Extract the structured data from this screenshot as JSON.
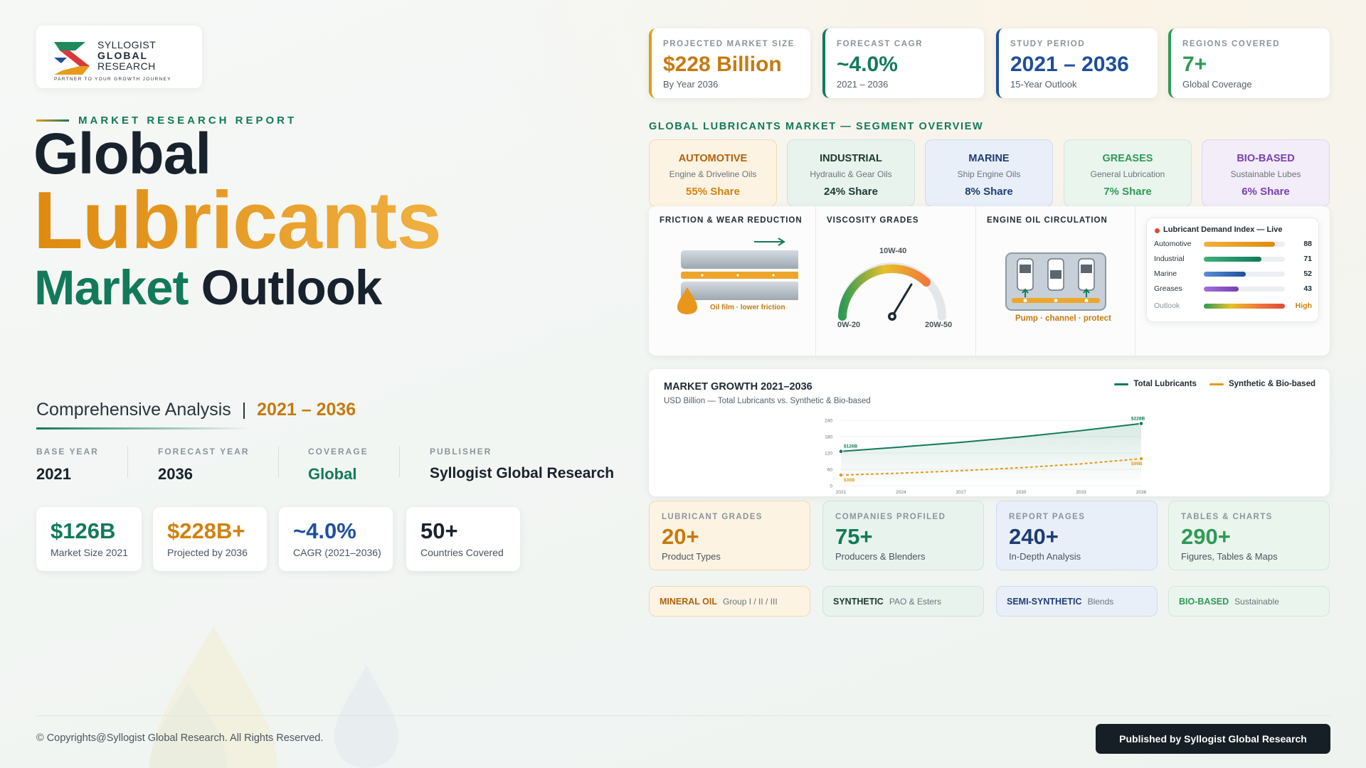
{
  "logo": {
    "name_lines": [
      "SYLLOGIST",
      "GLOBAL",
      "RESEARCH"
    ],
    "tagline": "PARTNER TO YOUR GROWTH JOURNEY"
  },
  "hero": {
    "eyebrow": "MARKET RESEARCH REPORT",
    "title_line1": "Global",
    "title_line2": "Lubricants",
    "title_line3a": "Market",
    "title_line3b": "Outlook",
    "subtitle": "Comprehensive Analysis",
    "subtitle_sep": "|",
    "subtitle_period": "2021 – 2036"
  },
  "facts": [
    {
      "label": "BASE YEAR",
      "value": "2021"
    },
    {
      "label": "FORECAST YEAR",
      "value": "2036"
    },
    {
      "label": "COVERAGE",
      "value": "Global"
    },
    {
      "label": "PUBLISHER",
      "value": "Syllogist Global Research"
    }
  ],
  "highlights": [
    {
      "value": "$126B",
      "label": "Market Size 2021"
    },
    {
      "value": "$228B+",
      "label": "Projected by 2036"
    },
    {
      "value": "~4.0%",
      "label": "CAGR (2021–2036)"
    },
    {
      "value": "50+",
      "label": "Countries Covered"
    }
  ],
  "kpis": [
    {
      "label": "PROJECTED MARKET SIZE",
      "value": "$228 Billion",
      "note": "By Year 2036"
    },
    {
      "label": "FORECAST CAGR",
      "value": "~4.0%",
      "note": "2021 – 2036"
    },
    {
      "label": "STUDY PERIOD",
      "value": "2021 – 2036",
      "note": "15-Year Outlook"
    },
    {
      "label": "REGIONS COVERED",
      "value": "7+",
      "note": "Global Coverage"
    }
  ],
  "segments": {
    "title": "GLOBAL LUBRICANTS MARKET — SEGMENT OVERVIEW",
    "items": [
      {
        "name": "AUTOMOTIVE",
        "desc": "Engine & Driveline Oils",
        "share": "55% Share"
      },
      {
        "name": "INDUSTRIAL",
        "desc": "Hydraulic & Gear Oils",
        "share": "24% Share"
      },
      {
        "name": "MARINE",
        "desc": "Ship Engine Oils",
        "share": "8% Share"
      },
      {
        "name": "GREASES",
        "desc": "General Lubrication",
        "share": "7% Share"
      },
      {
        "name": "BIO-BASED",
        "desc": "Sustainable Lubes",
        "share": "6% Share"
      }
    ]
  },
  "panels": {
    "friction": {
      "title": "FRICTION & WEAR REDUCTION",
      "caption": "Oil film · lower friction"
    },
    "viscosity": {
      "title": "VISCOSITY GRADES",
      "top": "10W-40",
      "low": "0W-20",
      "high": "20W-50"
    },
    "circulation": {
      "title": "ENGINE OIL CIRCULATION",
      "caption": "Pump · channel · protect"
    },
    "demand_index": {
      "title": "Lubricant Demand Index — Live",
      "rows": [
        {
          "name": "Automotive",
          "value": 88
        },
        {
          "name": "Industrial",
          "value": 71
        },
        {
          "name": "Marine",
          "value": 52
        },
        {
          "name": "Greases",
          "value": 43
        }
      ],
      "outlook": {
        "name": "Outlook",
        "label": "High"
      }
    }
  },
  "chart_data": {
    "type": "line",
    "title": "MARKET GROWTH 2021–2036",
    "subtitle": "USD Billion — Total Lubricants vs. Synthetic & Bio-based",
    "x": [
      2021,
      2024,
      2027,
      2030,
      2033,
      2036
    ],
    "xlim": [
      2021,
      2036
    ],
    "xticks": [
      2021,
      2024,
      2027,
      2030,
      2033,
      2036
    ],
    "ylim": [
      0,
      240
    ],
    "yticks": [
      0,
      60,
      120,
      180,
      240
    ],
    "grid": true,
    "legend": "upper right",
    "series": [
      {
        "name": "Total Lubricants",
        "color": "#127a5a",
        "values": [
          126,
          142,
          159,
          179,
          202,
          228
        ],
        "value_labels": [
          "$126B",
          null,
          null,
          null,
          null,
          "$228B"
        ]
      },
      {
        "name": "Synthetic & Bio-based",
        "color": "#e39a1a",
        "values": [
          39,
          46,
          55,
          66,
          80,
          99
        ],
        "value_labels": [
          "$39B",
          null,
          null,
          null,
          null,
          "$99B"
        ]
      }
    ]
  },
  "stats": [
    {
      "label": "LUBRICANT GRADES",
      "value": "20+",
      "desc": "Product Types"
    },
    {
      "label": "COMPANIES PROFILED",
      "value": "75+",
      "desc": "Producers & Blenders"
    },
    {
      "label": "REPORT PAGES",
      "value": "240+",
      "desc": "In-Depth Analysis"
    },
    {
      "label": "TABLES & CHARTS",
      "value": "290+",
      "desc": "Figures, Tables & Maps"
    }
  ],
  "tags": [
    {
      "name": "MINERAL OIL",
      "desc": "Group I / II / III"
    },
    {
      "name": "SYNTHETIC",
      "desc": "PAO & Esters"
    },
    {
      "name": "SEMI-SYNTHETIC",
      "desc": "Blends"
    },
    {
      "name": "BIO-BASED",
      "desc": "Sustainable"
    }
  ],
  "footer": {
    "copyright": "© Copyrights@Syllogist Global Research. All Rights Reserved.",
    "publisher": "Published by Syllogist Global Research"
  }
}
